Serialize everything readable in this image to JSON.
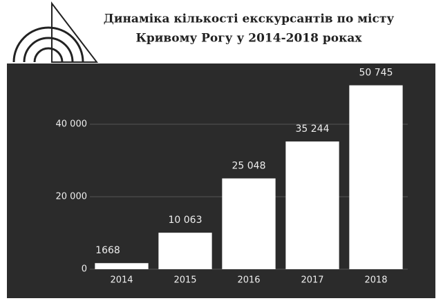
{
  "chart_data": {
    "type": "bar",
    "title": [
      "Динаміка кількості екскурсантів по місту",
      "Кривому Рогу у 2014-2018 роках"
    ],
    "categories": [
      "2014",
      "2015",
      "2016",
      "2017",
      "2018"
    ],
    "values": [
      1668,
      10063,
      25048,
      35244,
      50745
    ],
    "value_labels": [
      "1668",
      "10 063",
      "25 048",
      "35 244",
      "50 745"
    ],
    "color": "#ffffff",
    "ylim": [
      0,
      56000
    ],
    "yticks": [
      0,
      {
        "value": 20000,
        "label": "20 000"
      },
      {
        "value": 40000,
        "label": "40 000"
      }
    ],
    "grid": true
  }
}
